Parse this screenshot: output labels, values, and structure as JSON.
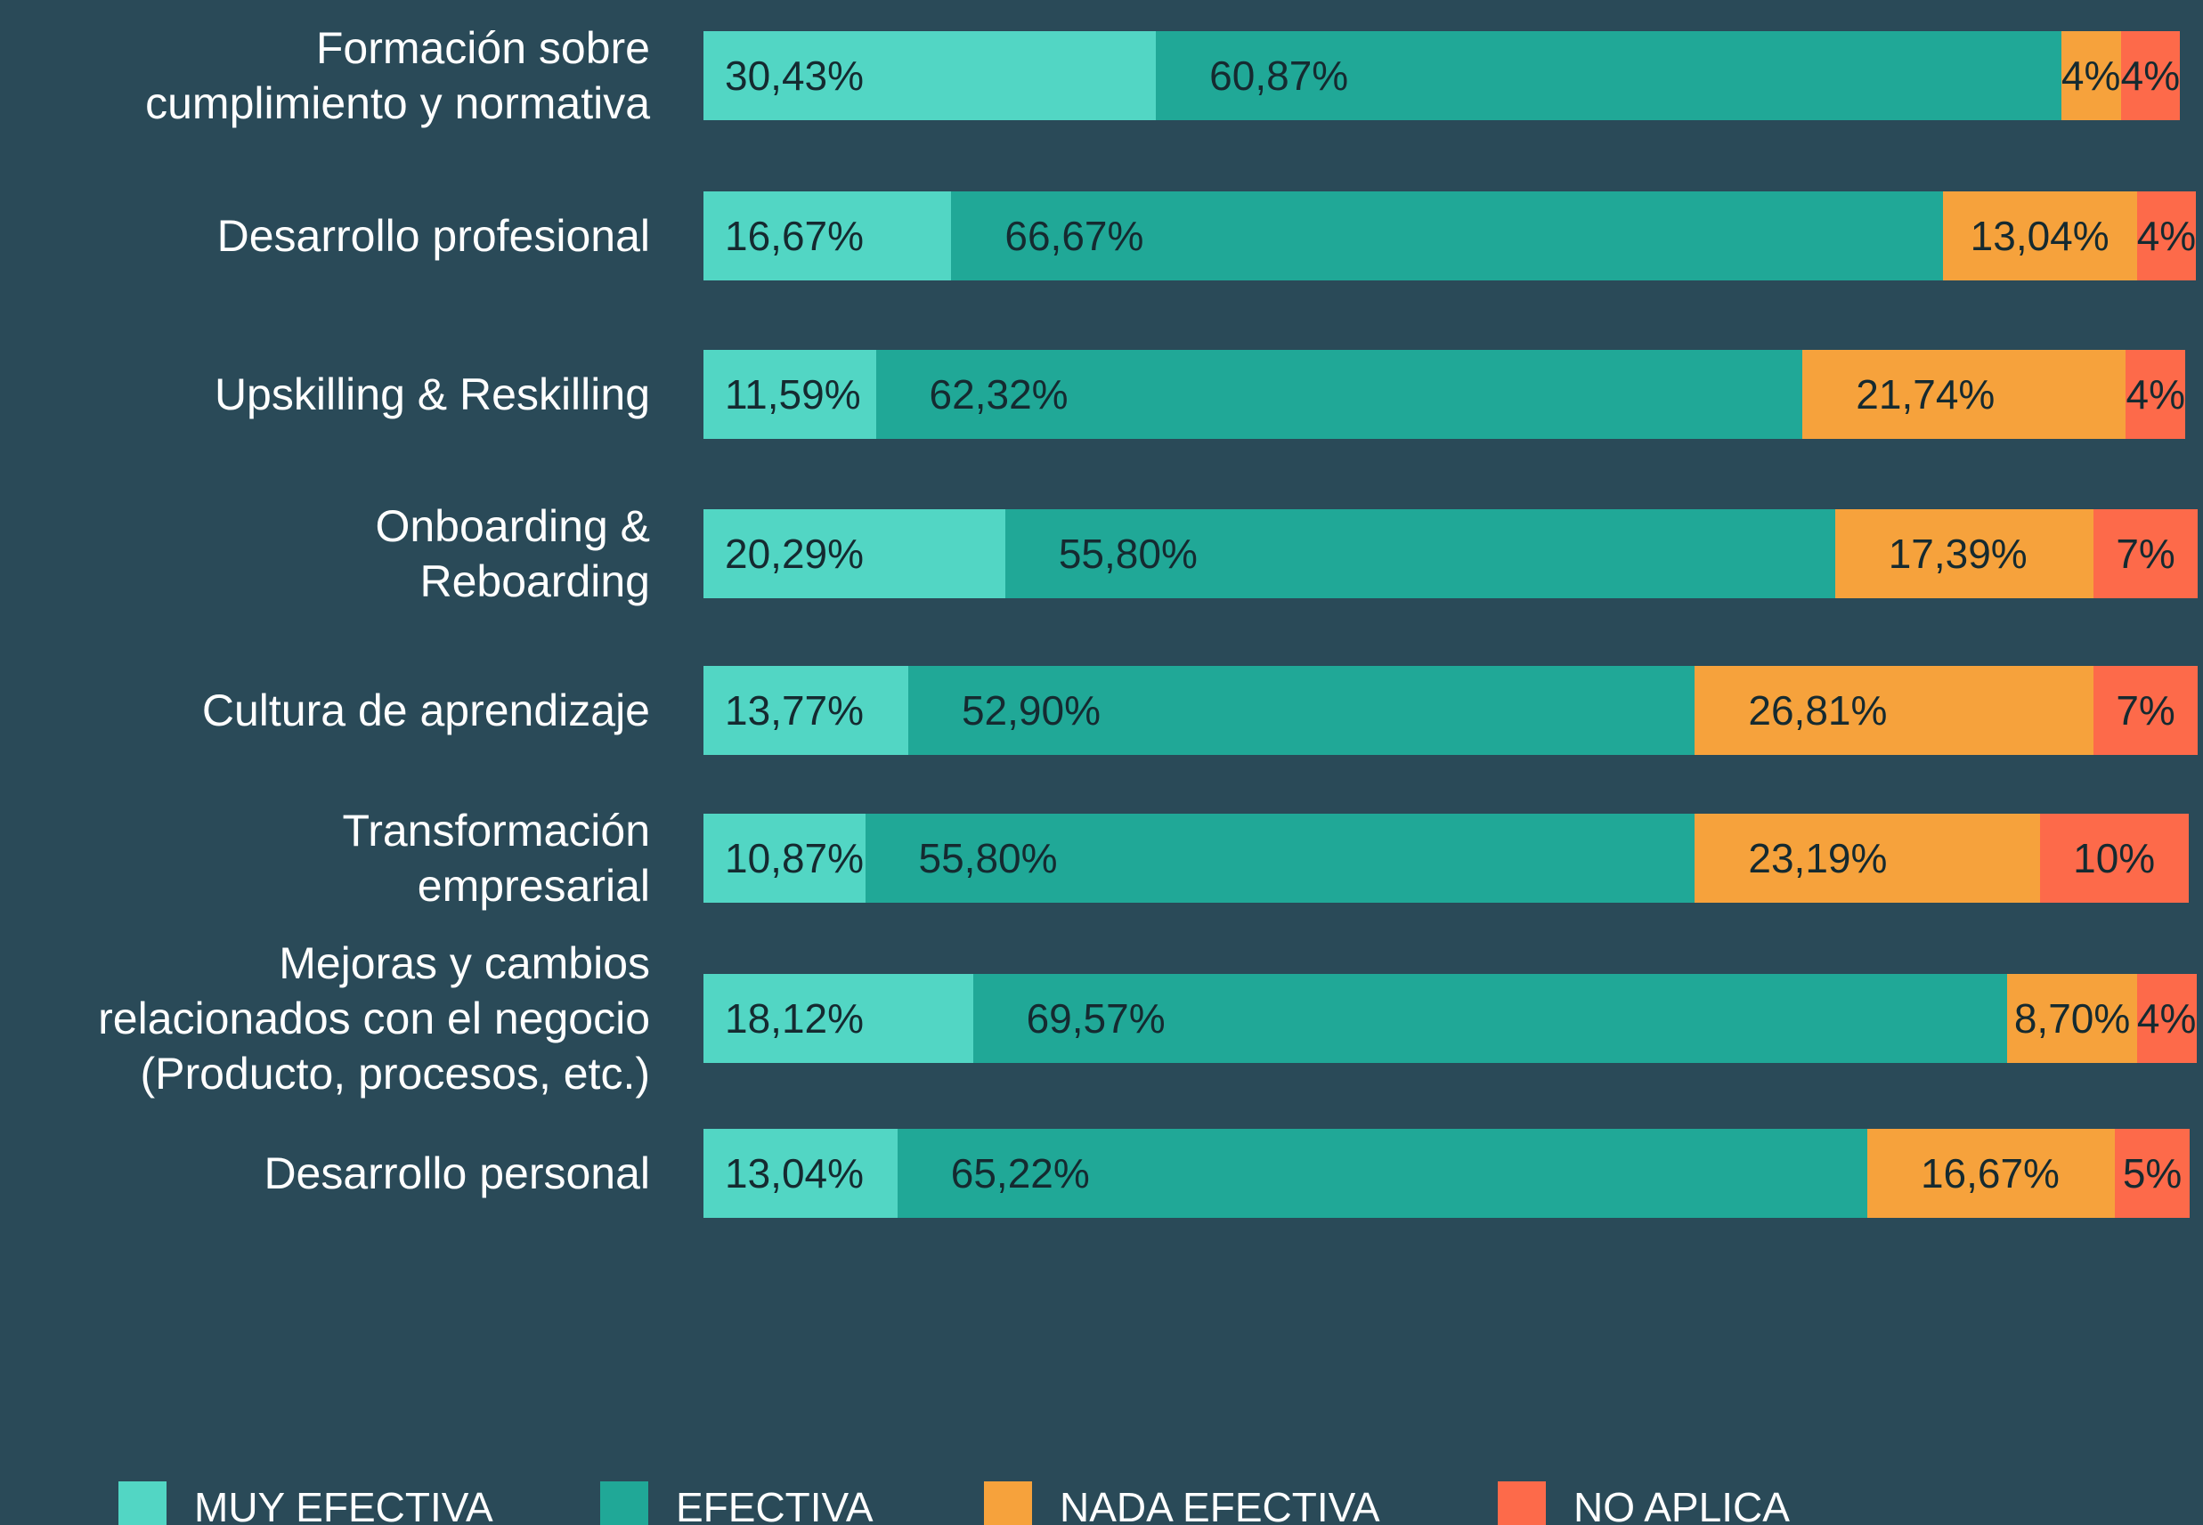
{
  "chart_data": {
    "type": "stacked_bar_horizontal",
    "categories": [
      "Formación sobre\ncumplimiento y normativa",
      "Desarrollo profesional",
      "Upskilling & Reskilling",
      "Onboarding &\nReboarding",
      "Cultura de aprendizaje",
      "Transformación\nempresarial",
      "Mejoras y cambios\nrelacionados con el negocio\n(Producto, procesos, etc.)",
      "Desarrollo personal"
    ],
    "xlim": [
      0,
      100
    ],
    "legend": "bottom",
    "series": [
      {
        "name": "MUY EFECTIVA",
        "color": "#52d6c4",
        "values": [
          30.43,
          16.67,
          11.59,
          20.29,
          13.77,
          10.87,
          18.12,
          13.04
        ],
        "value_labels": [
          "30,43%",
          "16,67%",
          "11,59%",
          "20,29%",
          "13,77%",
          "10,87%",
          "18,12%",
          "13,04%"
        ]
      },
      {
        "name": "EFECTIVA",
        "color": "#20a897",
        "values": [
          60.87,
          66.67,
          62.32,
          55.8,
          52.9,
          55.8,
          69.57,
          65.22
        ],
        "value_labels": [
          "60,87%",
          "66,67%",
          "62,32%",
          "55,80%",
          "52,90%",
          "55,80%",
          "69,57%",
          "65,22%"
        ]
      },
      {
        "name": "NADA EFECTIVA",
        "color": "#f6a23c",
        "values": [
          4,
          13.04,
          21.74,
          17.39,
          26.81,
          23.19,
          8.7,
          16.67
        ],
        "value_labels": [
          "4%",
          "13,04%",
          "21,74%",
          "17,39%",
          "26,81%",
          "23,19%",
          "8,70%",
          "16,67%"
        ]
      },
      {
        "name": "NO APLICA",
        "color": "#fd6a4a",
        "values": [
          4,
          4,
          4,
          7,
          7,
          10,
          4,
          5
        ],
        "value_labels": [
          "4%",
          "4%",
          "4%",
          "7%",
          "7%",
          "10%",
          "4%",
          "5%"
        ]
      }
    ]
  }
}
